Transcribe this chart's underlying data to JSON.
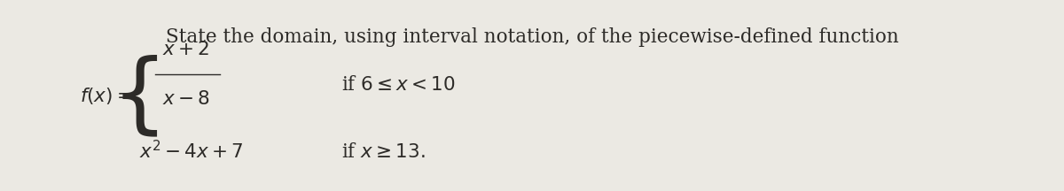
{
  "background_color": "#ebe9e3",
  "text_color": "#2d2b28",
  "title": "State the domain, using interval notation, of the piecewise-defined function",
  "title_fontsize": 15.5,
  "fx_label": "$f(x) =$",
  "fx_fontsize": 15.5,
  "piece_fontsize": 15.5,
  "cond_fontsize": 15.5,
  "piece1_num": "$x + 2$",
  "piece1_den": "$x - 8$",
  "piece2": "$x^2 - 4x + 7$",
  "cond1": "if $6 \\leq x < 10$",
  "cond2": "if $x \\geq 13.$"
}
